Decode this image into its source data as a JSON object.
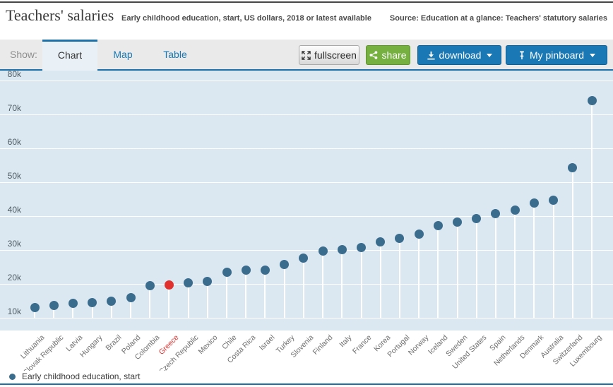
{
  "header": {
    "title": "Teachers' salaries",
    "subtitle": "Early childhood education, start, US dollars, 2018 or latest available",
    "source": "Source: Education at a glance: Teachers' statutory salaries"
  },
  "toolbar": {
    "show_label": "Show:",
    "tabs": [
      {
        "label": "Chart",
        "active": true
      },
      {
        "label": "Map",
        "active": false
      },
      {
        "label": "Table",
        "active": false
      }
    ],
    "buttons": {
      "fullscreen": "fullscreen",
      "share": "share",
      "download": "download",
      "pinboard": "My pinboard"
    }
  },
  "colors": {
    "accent_blue": "#1d70a8",
    "button_blue": "#1a79b5",
    "button_green": "#76b041",
    "chart_bg": "#dce8f1",
    "dot": "#3a6c8d",
    "highlight": "#e0312e"
  },
  "chart_data": {
    "type": "scatter",
    "title": "Teachers' salaries",
    "subtitle": "Early childhood education, start, US dollars, 2018 or latest available",
    "series_name": "Early childhood education, start",
    "legend": "Early childhood education, start",
    "legend_position": "bottom-left",
    "grid": true,
    "highlight_category": "Greece",
    "categories": [
      "Lithuania",
      "Slovak Republic",
      "Latvia",
      "Hungary",
      "Brazil",
      "Poland",
      "Colombia",
      "Greece",
      "Czech Republic",
      "Mexico",
      "Chile",
      "Costa Rica",
      "Israel",
      "Turkey",
      "Slovenia",
      "Finland",
      "Italy",
      "France",
      "Korea",
      "Portugal",
      "Norway",
      "Iceland",
      "Sweden",
      "United States",
      "Spain",
      "Netherlands",
      "Denmark",
      "Australia",
      "Switzerland",
      "Luxembourg"
    ],
    "values": [
      13000,
      13700,
      14300,
      14400,
      14800,
      16000,
      19500,
      19600,
      20300,
      20800,
      23500,
      24000,
      24100,
      25800,
      27700,
      29700,
      30100,
      30700,
      32400,
      33400,
      34600,
      37100,
      38300,
      39300,
      40800,
      41700,
      43800,
      44600,
      54200,
      74000
    ],
    "y_axis": {
      "tick_labels": [
        "10k",
        "20k",
        "30k",
        "40k",
        "50k",
        "60k",
        "70k",
        "80k"
      ],
      "tick_values": [
        10000,
        20000,
        30000,
        40000,
        50000,
        60000,
        70000,
        80000
      ],
      "min": 10000,
      "max": 82900
    }
  }
}
